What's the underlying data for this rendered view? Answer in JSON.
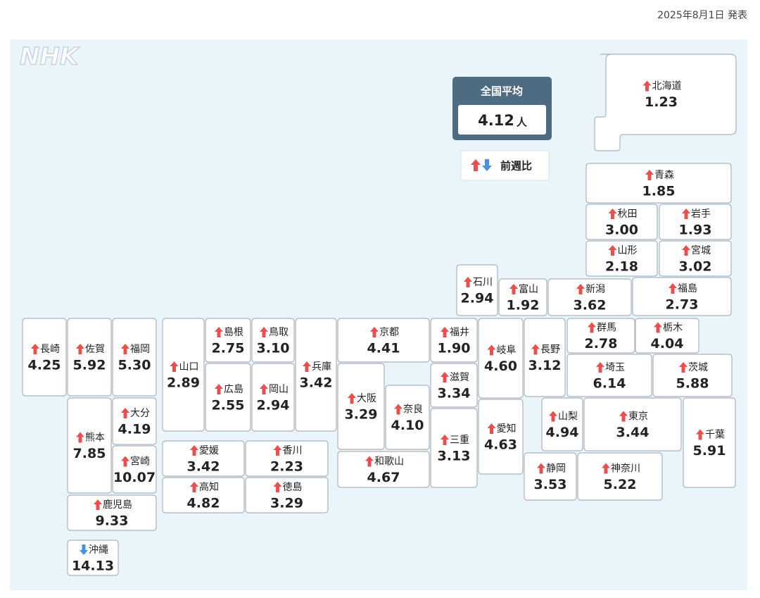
{
  "header": {
    "date": "2025年8月1日 発表"
  },
  "logo": "NHK",
  "national": {
    "label": "全国平均",
    "value": "4.12",
    "unit": "人"
  },
  "legend": {
    "label": "前週比"
  },
  "prefectures": [
    {
      "name": "北海道",
      "value": "1.23",
      "trend": "up"
    },
    {
      "name": "青森",
      "value": "1.85",
      "trend": "up"
    },
    {
      "name": "秋田",
      "value": "3.00",
      "trend": "up"
    },
    {
      "name": "岩手",
      "value": "1.93",
      "trend": "up"
    },
    {
      "name": "山形",
      "value": "2.18",
      "trend": "up"
    },
    {
      "name": "宮城",
      "value": "3.02",
      "trend": "up"
    },
    {
      "name": "石川",
      "value": "2.94",
      "trend": "up"
    },
    {
      "name": "富山",
      "value": "1.92",
      "trend": "up"
    },
    {
      "name": "新潟",
      "value": "3.62",
      "trend": "up"
    },
    {
      "name": "福島",
      "value": "2.73",
      "trend": "up"
    },
    {
      "name": "群馬",
      "value": "2.78",
      "trend": "up"
    },
    {
      "name": "栃木",
      "value": "4.04",
      "trend": "up"
    },
    {
      "name": "茨城",
      "value": "5.88",
      "trend": "up"
    },
    {
      "name": "埼玉",
      "value": "6.14",
      "trend": "up"
    },
    {
      "name": "千葉",
      "value": "5.91",
      "trend": "up"
    },
    {
      "name": "東京",
      "value": "3.44",
      "trend": "up"
    },
    {
      "name": "神奈川",
      "value": "5.22",
      "trend": "up"
    },
    {
      "name": "山梨",
      "value": "4.94",
      "trend": "up"
    },
    {
      "name": "静岡",
      "value": "3.53",
      "trend": "up"
    },
    {
      "name": "長野",
      "value": "3.12",
      "trend": "up"
    },
    {
      "name": "岐阜",
      "value": "4.60",
      "trend": "up"
    },
    {
      "name": "愛知",
      "value": "4.63",
      "trend": "up"
    },
    {
      "name": "福井",
      "value": "1.90",
      "trend": "up"
    },
    {
      "name": "滋賀",
      "value": "3.34",
      "trend": "up"
    },
    {
      "name": "三重",
      "value": "3.13",
      "trend": "up"
    },
    {
      "name": "京都",
      "value": "4.41",
      "trend": "up"
    },
    {
      "name": "大阪",
      "value": "3.29",
      "trend": "up"
    },
    {
      "name": "奈良",
      "value": "4.10",
      "trend": "up"
    },
    {
      "name": "和歌山",
      "value": "4.67",
      "trend": "up"
    },
    {
      "name": "兵庫",
      "value": "3.42",
      "trend": "up"
    },
    {
      "name": "鳥取",
      "value": "3.10",
      "trend": "up"
    },
    {
      "name": "島根",
      "value": "2.75",
      "trend": "up"
    },
    {
      "name": "岡山",
      "value": "2.94",
      "trend": "up"
    },
    {
      "name": "広島",
      "value": "2.55",
      "trend": "up"
    },
    {
      "name": "山口",
      "value": "2.89",
      "trend": "up"
    },
    {
      "name": "愛媛",
      "value": "3.42",
      "trend": "up"
    },
    {
      "name": "香川",
      "value": "2.23",
      "trend": "up"
    },
    {
      "name": "高知",
      "value": "4.82",
      "trend": "up"
    },
    {
      "name": "徳島",
      "value": "3.29",
      "trend": "up"
    },
    {
      "name": "福岡",
      "value": "5.30",
      "trend": "up"
    },
    {
      "name": "佐賀",
      "value": "5.92",
      "trend": "up"
    },
    {
      "name": "長崎",
      "value": "4.25",
      "trend": "up"
    },
    {
      "name": "大分",
      "value": "4.19",
      "trend": "up"
    },
    {
      "name": "宮崎",
      "value": "10.07",
      "trend": "up"
    },
    {
      "name": "熊本",
      "value": "7.85",
      "trend": "up"
    },
    {
      "name": "鹿児島",
      "value": "9.33",
      "trend": "up"
    },
    {
      "name": "沖縄",
      "value": "14.13",
      "trend": "down"
    }
  ]
}
